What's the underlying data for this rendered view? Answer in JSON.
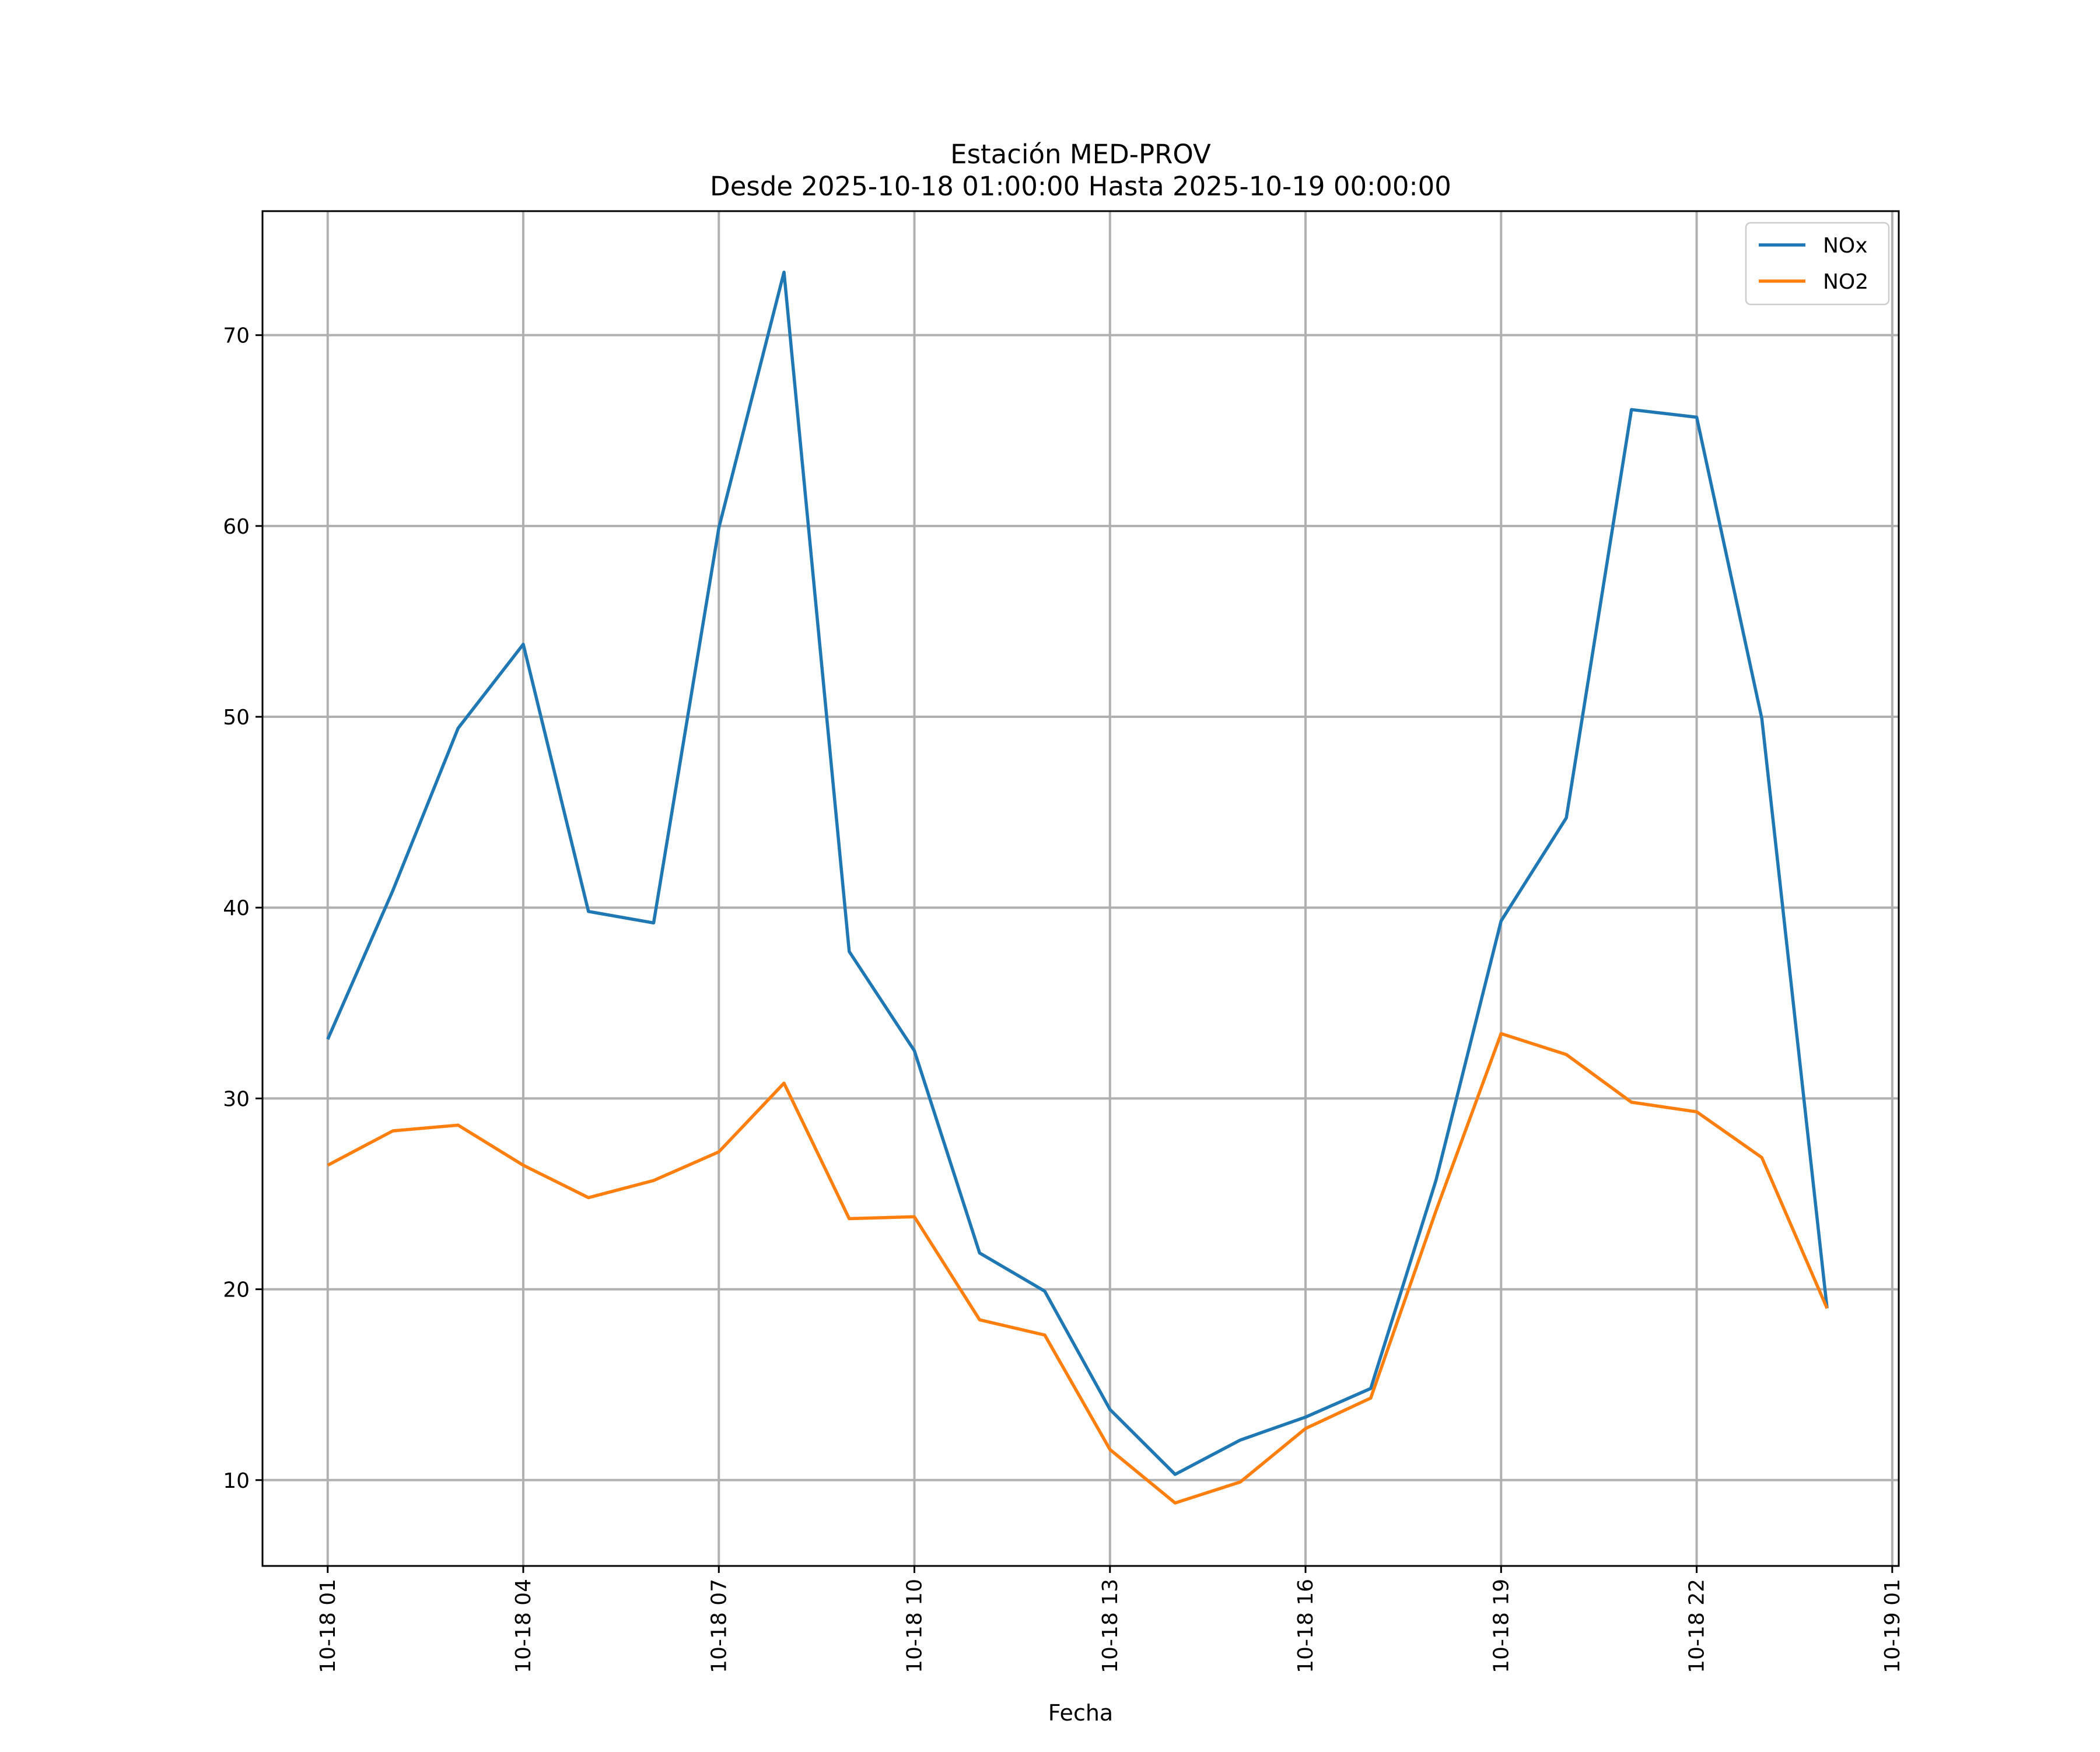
{
  "chart_data": {
    "type": "line",
    "title": "Estación MED-PROV",
    "subtitle": "Desde 2025-10-18 01:00:00 Hasta 2025-10-19 00:00:00",
    "xlabel": "Fecha",
    "ylabel": "",
    "x_start": "2025-10-18 01:00",
    "x_end": "2025-10-19 01:00",
    "x": [
      "2025-10-18 01:00",
      "2025-10-18 02:00",
      "2025-10-18 03:00",
      "2025-10-18 04:00",
      "2025-10-18 05:00",
      "2025-10-18 06:00",
      "2025-10-18 07:00",
      "2025-10-18 08:00",
      "2025-10-18 09:00",
      "2025-10-18 10:00",
      "2025-10-18 11:00",
      "2025-10-18 12:00",
      "2025-10-18 13:00",
      "2025-10-18 14:00",
      "2025-10-18 15:00",
      "2025-10-18 16:00",
      "2025-10-18 17:00",
      "2025-10-18 18:00",
      "2025-10-18 19:00",
      "2025-10-18 20:00",
      "2025-10-18 21:00",
      "2025-10-18 22:00",
      "2025-10-18 23:00",
      "2025-10-19 00:00"
    ],
    "xticks": [
      {
        "value": "2025-10-18 01:00",
        "label": "10-18 01"
      },
      {
        "value": "2025-10-18 04:00",
        "label": "10-18 04"
      },
      {
        "value": "2025-10-18 07:00",
        "label": "10-18 07"
      },
      {
        "value": "2025-10-18 10:00",
        "label": "10-18 10"
      },
      {
        "value": "2025-10-18 13:00",
        "label": "10-18 13"
      },
      {
        "value": "2025-10-18 16:00",
        "label": "10-18 16"
      },
      {
        "value": "2025-10-18 19:00",
        "label": "10-18 19"
      },
      {
        "value": "2025-10-18 22:00",
        "label": "10-18 22"
      },
      {
        "value": "2025-10-19 01:00",
        "label": "10-19 01"
      }
    ],
    "yticks": [
      10,
      20,
      30,
      40,
      50,
      60,
      70
    ],
    "xlim": [
      "2025-10-18 00:00",
      "2025-10-19 01:06"
    ],
    "ylim": [
      5.5,
      76.5
    ],
    "grid": true,
    "legend_position": "top-right",
    "series": [
      {
        "name": "NOx",
        "color": "#1f77b4",
        "values": [
          33.1,
          40.9,
          49.4,
          53.8,
          39.8,
          39.2,
          59.9,
          73.3,
          37.7,
          32.5,
          21.9,
          19.9,
          13.7,
          10.3,
          12.1,
          13.3,
          14.8,
          25.7,
          39.3,
          44.7,
          66.1,
          65.7,
          49.9,
          19.0
        ]
      },
      {
        "name": "NO2",
        "color": "#ff7f0e",
        "values": [
          26.5,
          28.3,
          28.6,
          26.5,
          24.8,
          25.7,
          27.2,
          30.8,
          23.7,
          23.8,
          18.4,
          17.6,
          11.6,
          8.8,
          9.9,
          12.7,
          14.3,
          24.1,
          33.4,
          32.3,
          29.8,
          29.3,
          26.9,
          19.0
        ]
      }
    ]
  }
}
